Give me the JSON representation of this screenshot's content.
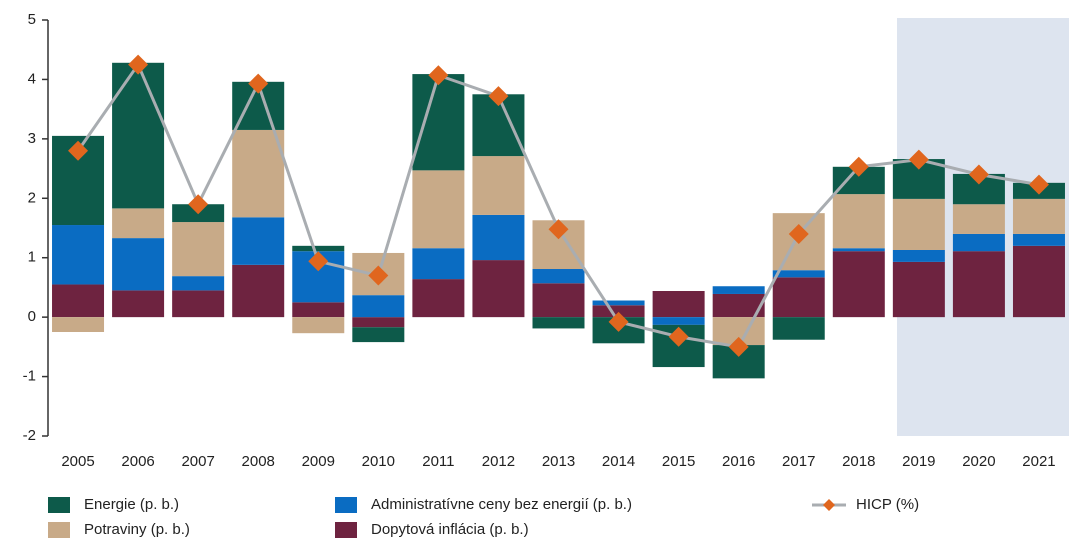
{
  "chart_data": {
    "type": "stacked-bar-line",
    "categories": [
      "2005",
      "2006",
      "2007",
      "2008",
      "2009",
      "2010",
      "2011",
      "2012",
      "2013",
      "2014",
      "2015",
      "2016",
      "2017",
      "2018",
      "2019",
      "2020",
      "2021"
    ],
    "series": [
      {
        "name": "Dopytová inflácia (p. b.)",
        "color": "#6e2340",
        "type": "bar",
        "values": [
          0.55,
          0.45,
          0.45,
          0.88,
          0.25,
          -0.17,
          0.64,
          0.96,
          0.57,
          0.2,
          0.44,
          0.39,
          0.67,
          1.11,
          0.93,
          1.11,
          1.2
        ]
      },
      {
        "name": "Administratívne ceny bez energií (p. b.)",
        "color": "#0a6cc2",
        "type": "bar",
        "values": [
          1.0,
          0.88,
          0.24,
          0.8,
          0.86,
          0.37,
          0.52,
          0.76,
          0.24,
          0.08,
          -0.13,
          0.13,
          0.12,
          0.05,
          0.2,
          0.29,
          0.2
        ]
      },
      {
        "name": "Potraviny (p. b.)",
        "color": "#c8aa88",
        "type": "bar",
        "values": [
          -0.25,
          0.5,
          0.91,
          1.47,
          -0.27,
          0.71,
          1.31,
          0.99,
          0.82,
          0,
          0,
          -0.47,
          0.96,
          0.91,
          0.86,
          0.5,
          0.59
        ]
      },
      {
        "name": "Energie (p. b.)",
        "color": "#0d5a4a",
        "type": "bar",
        "values": [
          1.5,
          2.45,
          0.3,
          0.81,
          0.09,
          -0.25,
          1.62,
          1.04,
          -0.19,
          -0.44,
          -0.71,
          -0.56,
          -0.38,
          0.46,
          0.67,
          0.51,
          0.27
        ]
      },
      {
        "name": "HICP (%)",
        "color": "#e0661e",
        "line_color": "#a9adb1",
        "type": "line",
        "values": [
          2.8,
          4.25,
          1.9,
          3.93,
          0.94,
          0.7,
          4.07,
          3.72,
          1.48,
          -0.08,
          -0.33,
          -0.5,
          1.4,
          2.53,
          2.65,
          2.4,
          2.23
        ]
      }
    ],
    "ylim": [
      -2,
      5
    ],
    "yticks": [
      -2,
      -1,
      0,
      1,
      2,
      3,
      4,
      5
    ]
  }
}
